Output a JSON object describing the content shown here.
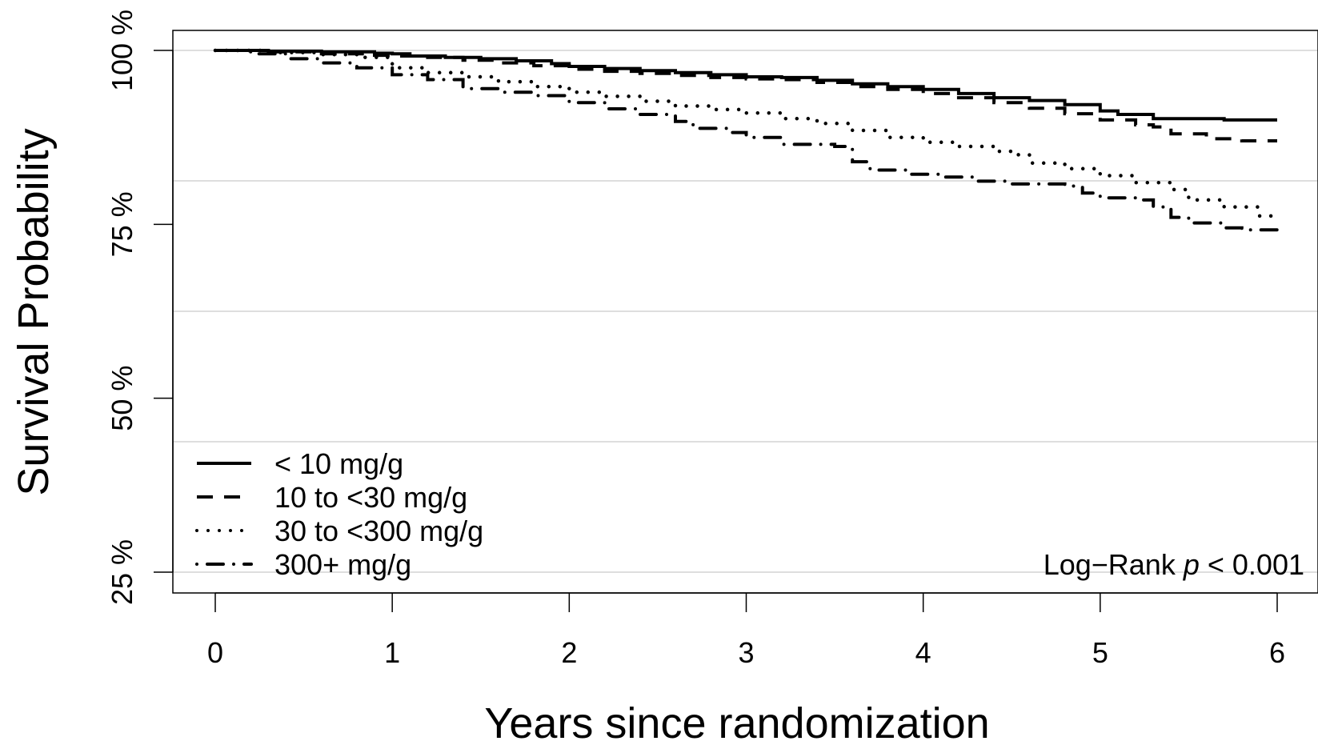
{
  "chart_data": {
    "type": "line",
    "title": "",
    "xlabel": "Years since randomization",
    "ylabel": "Survival Probability",
    "xlim": [
      0,
      6
    ],
    "ylim": [
      0.25,
      1.0
    ],
    "x_ticks": [
      {
        "value": 0,
        "label": "0"
      },
      {
        "value": 1,
        "label": "1"
      },
      {
        "value": 2,
        "label": "2"
      },
      {
        "value": 3,
        "label": "3"
      },
      {
        "value": 4,
        "label": "4"
      },
      {
        "value": 5,
        "label": "5"
      },
      {
        "value": 6,
        "label": "6"
      }
    ],
    "y_ticks": [
      {
        "value": 0.25,
        "label": "25 %"
      },
      {
        "value": 0.5,
        "label": "50 %"
      },
      {
        "value": 0.75,
        "label": "75 %"
      },
      {
        "value": 1.0,
        "label": "100 %"
      }
    ],
    "grid_values": [
      0.25,
      0.4375,
      0.625,
      0.8125,
      1.0
    ],
    "grid": true,
    "legend_position": "bottom-left",
    "annotation": {
      "text": "Log−Rank ",
      "italic": "p",
      "suffix": " < 0.001",
      "position": "bottom-right"
    },
    "series": [
      {
        "name": "< 10 mg/g",
        "style": "solid",
        "points": [
          [
            0,
            1.0
          ],
          [
            0.3,
            0.999
          ],
          [
            0.6,
            0.998
          ],
          [
            0.9,
            0.996
          ],
          [
            1.0,
            0.995
          ],
          [
            1.1,
            0.992
          ],
          [
            1.3,
            0.99
          ],
          [
            1.5,
            0.988
          ],
          [
            1.7,
            0.985
          ],
          [
            1.9,
            0.981
          ],
          [
            2.0,
            0.977
          ],
          [
            2.2,
            0.974
          ],
          [
            2.4,
            0.971
          ],
          [
            2.6,
            0.968
          ],
          [
            2.8,
            0.965
          ],
          [
            3.0,
            0.962
          ],
          [
            3.2,
            0.961
          ],
          [
            3.4,
            0.957
          ],
          [
            3.6,
            0.952
          ],
          [
            3.8,
            0.948
          ],
          [
            4.0,
            0.944
          ],
          [
            4.2,
            0.938
          ],
          [
            4.4,
            0.932
          ],
          [
            4.6,
            0.928
          ],
          [
            4.8,
            0.922
          ],
          [
            5.0,
            0.913
          ],
          [
            5.1,
            0.908
          ],
          [
            5.2,
            0.908
          ],
          [
            5.3,
            0.902
          ],
          [
            5.5,
            0.902
          ],
          [
            5.7,
            0.9
          ],
          [
            6.0,
            0.9
          ]
        ]
      },
      {
        "name": "10 to <30 mg/g",
        "style": "dashed",
        "points": [
          [
            0,
            1.0
          ],
          [
            0.3,
            0.998
          ],
          [
            0.6,
            0.995
          ],
          [
            0.9,
            0.993
          ],
          [
            1.0,
            0.992
          ],
          [
            1.2,
            0.99
          ],
          [
            1.4,
            0.986
          ],
          [
            1.6,
            0.982
          ],
          [
            1.8,
            0.978
          ],
          [
            2.0,
            0.973
          ],
          [
            2.2,
            0.97
          ],
          [
            2.4,
            0.967
          ],
          [
            2.6,
            0.964
          ],
          [
            2.8,
            0.961
          ],
          [
            3.0,
            0.959
          ],
          [
            3.2,
            0.958
          ],
          [
            3.4,
            0.954
          ],
          [
            3.6,
            0.948
          ],
          [
            3.8,
            0.944
          ],
          [
            4.0,
            0.938
          ],
          [
            4.2,
            0.932
          ],
          [
            4.4,
            0.925
          ],
          [
            4.6,
            0.917
          ],
          [
            4.8,
            0.909
          ],
          [
            5.0,
            0.9
          ],
          [
            5.2,
            0.893
          ],
          [
            5.3,
            0.89
          ],
          [
            5.4,
            0.88
          ],
          [
            5.6,
            0.873
          ],
          [
            5.8,
            0.87
          ],
          [
            6.0,
            0.87
          ]
        ]
      },
      {
        "name": "30 to <300 mg/g",
        "style": "dotted",
        "points": [
          [
            0,
            1.0
          ],
          [
            0.3,
            0.997
          ],
          [
            0.6,
            0.994
          ],
          [
            0.8,
            0.99
          ],
          [
            1.0,
            0.975
          ],
          [
            1.2,
            0.968
          ],
          [
            1.4,
            0.962
          ],
          [
            1.6,
            0.955
          ],
          [
            1.8,
            0.948
          ],
          [
            2.0,
            0.94
          ],
          [
            2.2,
            0.934
          ],
          [
            2.4,
            0.927
          ],
          [
            2.6,
            0.92
          ],
          [
            2.8,
            0.915
          ],
          [
            3.0,
            0.91
          ],
          [
            3.2,
            0.902
          ],
          [
            3.4,
            0.895
          ],
          [
            3.6,
            0.885
          ],
          [
            3.8,
            0.875
          ],
          [
            4.0,
            0.868
          ],
          [
            4.2,
            0.862
          ],
          [
            4.4,
            0.855
          ],
          [
            4.5,
            0.85
          ],
          [
            4.6,
            0.838
          ],
          [
            4.8,
            0.83
          ],
          [
            5.0,
            0.82
          ],
          [
            5.2,
            0.81
          ],
          [
            5.4,
            0.8
          ],
          [
            5.5,
            0.785
          ],
          [
            5.7,
            0.775
          ],
          [
            5.9,
            0.762
          ],
          [
            6.0,
            0.755
          ]
        ]
      },
      {
        "name": "300+ mg/g",
        "style": "dotdash",
        "points": [
          [
            0,
            1.0
          ],
          [
            0.2,
            0.995
          ],
          [
            0.4,
            0.988
          ],
          [
            0.6,
            0.982
          ],
          [
            0.8,
            0.975
          ],
          [
            1.0,
            0.965
          ],
          [
            1.2,
            0.958
          ],
          [
            1.4,
            0.945
          ],
          [
            1.6,
            0.94
          ],
          [
            1.8,
            0.935
          ],
          [
            2.0,
            0.925
          ],
          [
            2.2,
            0.916
          ],
          [
            2.4,
            0.908
          ],
          [
            2.6,
            0.898
          ],
          [
            2.7,
            0.888
          ],
          [
            2.9,
            0.882
          ],
          [
            3.0,
            0.875
          ],
          [
            3.2,
            0.865
          ],
          [
            3.5,
            0.862
          ],
          [
            3.6,
            0.84
          ],
          [
            3.7,
            0.828
          ],
          [
            3.9,
            0.822
          ],
          [
            4.1,
            0.818
          ],
          [
            4.3,
            0.812
          ],
          [
            4.5,
            0.808
          ],
          [
            4.8,
            0.805
          ],
          [
            4.9,
            0.795
          ],
          [
            5.0,
            0.788
          ],
          [
            5.2,
            0.785
          ],
          [
            5.3,
            0.775
          ],
          [
            5.4,
            0.76
          ],
          [
            5.5,
            0.752
          ],
          [
            5.7,
            0.745
          ],
          [
            5.8,
            0.742
          ],
          [
            6.0,
            0.742
          ]
        ]
      }
    ]
  }
}
